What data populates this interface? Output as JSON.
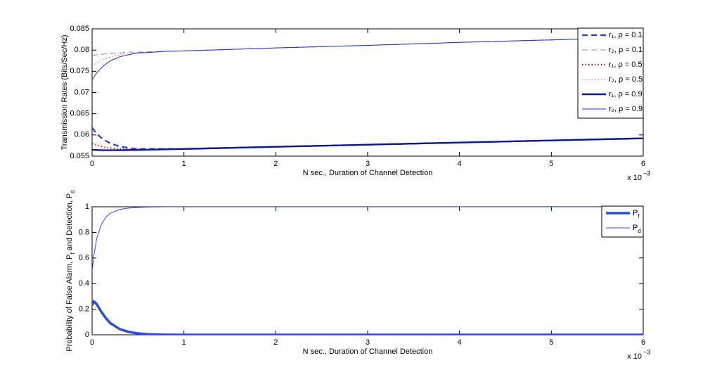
{
  "chart_data": [
    {
      "type": "line",
      "xlabel": "N sec., Duration of Channel Detection",
      "x_scale_base": "x 10",
      "x_scale_exponent": "−3",
      "ylabel": [
        "Transmission Rates (Bits/Sec/Hz)"
      ],
      "x": [
        0,
        0.05,
        0.1,
        0.15,
        0.2,
        0.3,
        0.4,
        0.5,
        0.6,
        0.8,
        1,
        2,
        3,
        4,
        5,
        6
      ],
      "xlim": [
        0,
        6
      ],
      "xticks": [
        0,
        1,
        2,
        3,
        4,
        5,
        6
      ],
      "ylim": [
        0.055,
        0.085
      ],
      "yticks": [
        0.055,
        0.06,
        0.065,
        0.07,
        0.075,
        0.08,
        0.085
      ],
      "legend": "upper right",
      "legend_subscript": false,
      "series": [
        {
          "name": "r₁, ρ = 0.1",
          "color": "#1f3fdc",
          "dash": "dashed",
          "width": 2.2,
          "values": [
            0.0617,
            0.0603,
            0.0593,
            0.0586,
            0.058,
            0.0573,
            0.0569,
            0.0567,
            0.0567,
            0.0567,
            0.0567,
            0.0572,
            0.0577,
            0.0582,
            0.0587,
            0.0592
          ]
        },
        {
          "name": "r₂, ρ = 0.1",
          "color": "#6f8de6",
          "dash": "dashed",
          "width": 1,
          "values": [
            0.0787,
            0.0789,
            0.079,
            0.0791,
            0.0792,
            0.0793,
            0.0795,
            0.0795,
            0.0796,
            0.0797,
            0.0798,
            0.0805,
            0.0811,
            0.0818,
            0.0824,
            0.083
          ]
        },
        {
          "name": "r₁, ρ = 0.5",
          "color": "#ff0000",
          "dash": "dotted",
          "width": 2,
          "values": [
            0.058,
            0.0576,
            0.0573,
            0.057,
            0.0569,
            0.0567,
            0.0566,
            0.0566,
            0.0566,
            0.0566,
            0.0567,
            0.0572,
            0.0577,
            0.0582,
            0.0587,
            0.0592
          ]
        },
        {
          "name": "r₂, ρ = 0.5",
          "color": "#ff4a4a",
          "dash": "dotted",
          "width": 1,
          "values": [
            0.0762,
            0.077,
            0.0776,
            0.078,
            0.0784,
            0.0789,
            0.0792,
            0.0794,
            0.0795,
            0.0797,
            0.0798,
            0.0805,
            0.0811,
            0.0818,
            0.0824,
            0.083
          ]
        },
        {
          "name": "r₁, ρ = 0.9",
          "color": "#0b1b8f",
          "dash": "solid",
          "width": 2.4,
          "values": [
            0.0565,
            0.05645,
            0.0564,
            0.0564,
            0.0564,
            0.0564,
            0.05643,
            0.05647,
            0.0565,
            0.0566,
            0.0567,
            0.0572,
            0.0577,
            0.0582,
            0.0587,
            0.0592
          ]
        },
        {
          "name": "r₂, ρ = 0.9",
          "color": "#1f30c8",
          "dash": "solid",
          "width": 1,
          "values": [
            0.073,
            0.0746,
            0.0758,
            0.0767,
            0.0775,
            0.0784,
            0.0789,
            0.0793,
            0.0794,
            0.0797,
            0.0798,
            0.0805,
            0.0811,
            0.0818,
            0.0824,
            0.083
          ]
        }
      ]
    },
    {
      "type": "line",
      "xlabel": "N sec., Duration of Channel Detection",
      "x_scale_base": "x 10",
      "x_scale_exponent": "−3",
      "ylabel": [
        "Probability of False Alarm, P",
        "f",
        " and Detection, P",
        "d"
      ],
      "x": [
        0,
        0.02,
        0.05,
        0.1,
        0.15,
        0.2,
        0.3,
        0.4,
        0.5,
        0.6,
        0.8,
        1,
        2,
        3,
        4,
        5,
        6
      ],
      "xlim": [
        0,
        6
      ],
      "xticks": [
        0,
        1,
        2,
        3,
        4,
        5,
        6
      ],
      "ylim": [
        0,
        1
      ],
      "yticks": [
        0,
        0.2,
        0.4,
        0.6,
        0.8,
        1
      ],
      "legend": "upper right",
      "legend_subscript": true,
      "series": [
        {
          "name": "Pf",
          "color": "#2a4bea",
          "dash": "solid",
          "width": 3.5,
          "values": [
            0.23,
            0.26,
            0.24,
            0.18,
            0.13,
            0.09,
            0.045,
            0.022,
            0.011,
            0.005,
            0.001,
            0,
            0,
            0,
            0,
            0,
            0
          ]
        },
        {
          "name": "Pd",
          "color": "#2a4bea",
          "dash": "solid",
          "width": 1,
          "values": [
            0.5,
            0.62,
            0.75,
            0.86,
            0.92,
            0.95,
            0.98,
            0.99,
            0.995,
            0.998,
            1,
            1,
            1,
            1,
            1,
            1,
            1
          ]
        }
      ]
    }
  ]
}
